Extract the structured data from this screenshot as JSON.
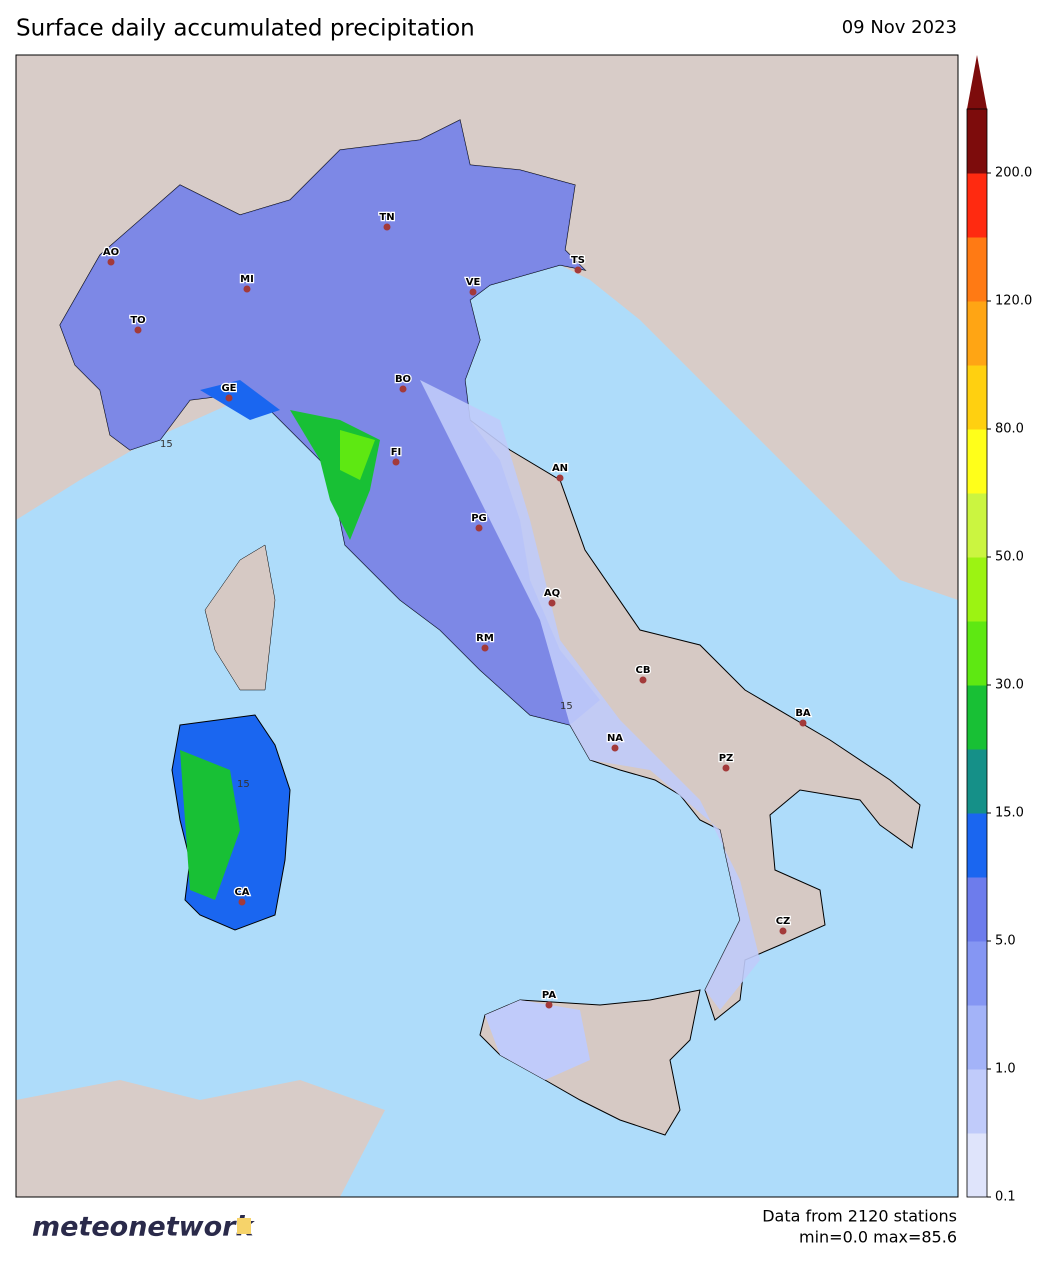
{
  "header": {
    "title": "Surface daily accumulated precipitation",
    "date": "09 Nov 2023"
  },
  "map": {
    "cities": [
      "AO",
      "TN",
      "MI",
      "VE",
      "TS",
      "TO",
      "GE",
      "BO",
      "FI",
      "AN",
      "PG",
      "AQ",
      "RM",
      "CB",
      "BA",
      "NA",
      "PZ",
      "CA",
      "CZ",
      "PA"
    ],
    "contour_labels": [
      "15",
      "15",
      "15"
    ]
  },
  "colorbar": {
    "colors": [
      "#dfe4fb",
      "#c0cbfa",
      "#a3b3f8",
      "#8596f3",
      "#6d7cec",
      "#1a66f0",
      "#159088",
      "#18c035",
      "#5ee812",
      "#9cf312",
      "#cbf540",
      "#ffff1a",
      "#ffd010",
      "#ffa514",
      "#ff7a14",
      "#ff2a10",
      "#7d0c0c"
    ],
    "ticks": [
      {
        "value": 0.1,
        "label": "0.1"
      },
      {
        "value": 1,
        "label": "1.0"
      },
      {
        "value": 5,
        "label": "5.0"
      },
      {
        "value": 15,
        "label": "15.0"
      },
      {
        "value": 30,
        "label": "30.0"
      },
      {
        "value": 50,
        "label": "50.0"
      },
      {
        "value": 80,
        "label": "80.0"
      },
      {
        "value": 120,
        "label": "120.0"
      },
      {
        "value": 200,
        "label": "200.0"
      }
    ]
  },
  "footer": {
    "logo": "meteonetwork",
    "stations": "Data from 2120 stations",
    "stats": "min=0.0 max=85.6"
  }
}
